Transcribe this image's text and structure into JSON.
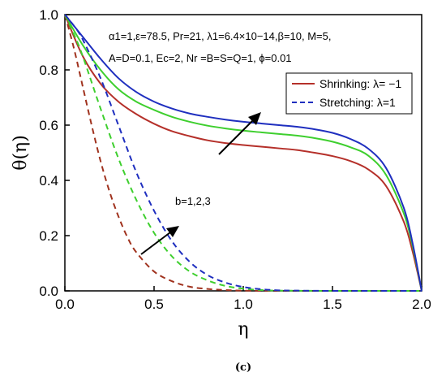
{
  "chart_data": {
    "type": "line",
    "xlabel": "η",
    "ylabel": "θ(η)",
    "xlim": [
      0.0,
      2.0
    ],
    "ylim": [
      0.0,
      1.0
    ],
    "xticks": [
      "0.0",
      "0.5",
      "1.0",
      "1.5",
      "2.0"
    ],
    "yticks": [
      "0.0",
      "0.2",
      "0.4",
      "0.6",
      "0.8",
      "1.0"
    ],
    "params_line1": "α1=1,ε=78.5, Pr=21, λ1=6.4×10−14,β=10, M=5,",
    "params_line2": "A=D=0.1, Ec=2, Nr =B=S=Q=1, ϕ=0.01",
    "legend": [
      {
        "label": "Shrinking: λ= −1",
        "style": "solid",
        "color": "#b5302a"
      },
      {
        "label": "Stretching: λ=1",
        "style": "dashed",
        "color": "#1f2fbf"
      }
    ],
    "legend_position": "top-right",
    "annotation_b": "b=1,2,3",
    "caption": "(c)",
    "series": [
      {
        "style": "solid",
        "color": "#b5302a",
        "x": [
          0,
          0.1,
          0.2,
          0.3,
          0.4,
          0.5,
          0.6,
          0.7,
          0.8,
          0.9,
          1.0,
          1.1,
          1.2,
          1.3,
          1.4,
          1.5,
          1.6,
          1.7,
          1.8,
          1.9,
          1.95,
          2.0
        ],
        "y": [
          1.0,
          0.85,
          0.75,
          0.685,
          0.64,
          0.605,
          0.578,
          0.56,
          0.545,
          0.535,
          0.528,
          0.522,
          0.516,
          0.51,
          0.5,
          0.488,
          0.47,
          0.44,
          0.38,
          0.25,
          0.14,
          0.0
        ]
      },
      {
        "style": "solid",
        "color": "#3ecf2e",
        "x": [
          0,
          0.1,
          0.2,
          0.3,
          0.4,
          0.5,
          0.6,
          0.7,
          0.8,
          0.9,
          1.0,
          1.1,
          1.2,
          1.3,
          1.4,
          1.5,
          1.6,
          1.7,
          1.8,
          1.9,
          1.95,
          2.0
        ],
        "y": [
          1.0,
          0.89,
          0.8,
          0.73,
          0.685,
          0.655,
          0.63,
          0.612,
          0.598,
          0.588,
          0.58,
          0.574,
          0.568,
          0.562,
          0.553,
          0.54,
          0.52,
          0.49,
          0.42,
          0.28,
          0.16,
          0.0
        ]
      },
      {
        "style": "solid",
        "color": "#1f2fbf",
        "x": [
          0,
          0.1,
          0.2,
          0.3,
          0.4,
          0.5,
          0.6,
          0.7,
          0.8,
          0.9,
          1.0,
          1.1,
          1.2,
          1.3,
          1.4,
          1.5,
          1.6,
          1.7,
          1.8,
          1.9,
          1.95,
          2.0
        ],
        "y": [
          1.0,
          0.92,
          0.84,
          0.77,
          0.72,
          0.685,
          0.66,
          0.642,
          0.63,
          0.62,
          0.612,
          0.606,
          0.6,
          0.594,
          0.585,
          0.572,
          0.55,
          0.515,
          0.445,
          0.3,
          0.17,
          0.0
        ]
      },
      {
        "style": "dashed",
        "color": "#a0321e",
        "x": [
          0,
          0.05,
          0.1,
          0.15,
          0.2,
          0.25,
          0.3,
          0.35,
          0.4,
          0.5,
          0.6,
          0.7,
          0.8,
          0.9,
          1.0,
          1.2,
          1.5,
          2.0
        ],
        "y": [
          1.0,
          0.88,
          0.74,
          0.6,
          0.47,
          0.36,
          0.27,
          0.195,
          0.14,
          0.07,
          0.035,
          0.015,
          0.007,
          0.003,
          0.001,
          0.0,
          0.0,
          0.0
        ]
      },
      {
        "style": "dashed",
        "color": "#3ecf2e",
        "x": [
          0,
          0.05,
          0.1,
          0.2,
          0.3,
          0.4,
          0.5,
          0.6,
          0.7,
          0.8,
          0.9,
          1.0,
          1.1,
          1.2,
          1.5,
          2.0
        ],
        "y": [
          1.0,
          0.93,
          0.85,
          0.66,
          0.48,
          0.33,
          0.21,
          0.125,
          0.07,
          0.038,
          0.018,
          0.008,
          0.003,
          0.001,
          0.0,
          0.0
        ]
      },
      {
        "style": "dashed",
        "color": "#1f2fbf",
        "x": [
          0,
          0.05,
          0.1,
          0.2,
          0.3,
          0.4,
          0.5,
          0.6,
          0.7,
          0.8,
          0.9,
          1.0,
          1.1,
          1.2,
          1.3,
          1.5,
          2.0
        ],
        "y": [
          1.0,
          0.96,
          0.91,
          0.77,
          0.6,
          0.43,
          0.29,
          0.18,
          0.105,
          0.057,
          0.03,
          0.014,
          0.006,
          0.002,
          0.001,
          0.0,
          0.0
        ]
      }
    ]
  }
}
